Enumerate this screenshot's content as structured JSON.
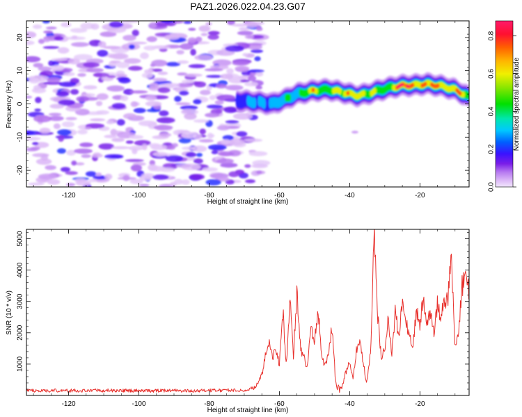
{
  "title": "PAZ1.2026.022.04.23.G07",
  "chart_data": [
    {
      "type": "heatmap",
      "name": "Radio-holographic spectrum",
      "xlabel": "Height of straight line (km)",
      "ylabel": "Frequency (Hz)",
      "xlim": [
        -132,
        -6
      ],
      "ylim": [
        -25,
        25
      ],
      "x_ticks": [
        "-120",
        "-100",
        "-80",
        "-60",
        "-40",
        "-20"
      ],
      "x_tick_values": [
        -120,
        -100,
        -80,
        -60,
        -40,
        -20
      ],
      "y_ticks": [
        "-20",
        "-10",
        "0",
        "10",
        "20"
      ],
      "y_tick_values": [
        -20,
        -10,
        0,
        10,
        20
      ],
      "colorbar": {
        "label": "Normalized spectral amplitude",
        "range": [
          0,
          0.88
        ],
        "ticks": [
          "0.0",
          "0.2",
          "0.4",
          "0.6",
          "0.8"
        ],
        "tick_values": [
          0.0,
          0.2,
          0.4,
          0.6,
          0.8
        ]
      },
      "noise_region_x": [
        -132,
        -67
      ],
      "signal_ridge": {
        "x": [
          -72,
          -66,
          -62,
          -58,
          -55,
          -50,
          -46,
          -42,
          -38,
          -35,
          -32,
          -28,
          -25,
          -22,
          -18,
          -14,
          -10,
          -6
        ],
        "frequency": [
          1.0,
          0.5,
          0.0,
          1.5,
          3.0,
          4.0,
          4.3,
          3.5,
          2.5,
          3.0,
          4.0,
          5.0,
          5.5,
          5.6,
          6.0,
          5.4,
          4.3,
          2.0
        ],
        "peak_amplitude": [
          0.25,
          0.3,
          0.35,
          0.4,
          0.45,
          0.65,
          0.6,
          0.62,
          0.8,
          0.5,
          0.55,
          0.62,
          0.88,
          0.85,
          0.7,
          0.8,
          0.75,
          0.5
        ]
      }
    },
    {
      "type": "line",
      "name": "SNR",
      "xlabel": "Height of straight line (km)",
      "ylabel": "SNR (10 * v/v)",
      "xlim": [
        -132,
        -6
      ],
      "ylim": [
        0,
        5300
      ],
      "color": "#e8302c",
      "x_ticks": [
        "-120",
        "-100",
        "-80",
        "-60",
        "-40",
        "-20"
      ],
      "x_tick_values": [
        -120,
        -100,
        -80,
        -60,
        -40,
        -20
      ],
      "y_ticks": [
        "1000",
        "2000",
        "3000",
        "4000",
        "5000"
      ],
      "y_tick_values": [
        1000,
        2000,
        3000,
        4000,
        5000
      ],
      "series": [
        {
          "name": "SNR",
          "x": [
            -132,
            -110,
            -90,
            -70,
            -67,
            -65,
            -64,
            -63,
            -62,
            -61,
            -60,
            -59,
            -58,
            -57,
            -56,
            -55,
            -54,
            -53,
            -52,
            -51,
            -50,
            -49,
            -48,
            -47,
            -46,
            -45,
            -44,
            -43,
            -42,
            -41,
            -40,
            -39,
            -38,
            -37,
            -36,
            -35,
            -34,
            -33,
            -32,
            -31,
            -30,
            -29,
            -28,
            -27,
            -26,
            -25,
            -24,
            -23,
            -22,
            -21,
            -20,
            -19,
            -18,
            -17,
            -16,
            -15,
            -14,
            -13,
            -12,
            -11,
            -10,
            -9,
            -8,
            -7,
            -6
          ],
          "y": [
            150,
            160,
            150,
            170,
            250,
            600,
            1300,
            1700,
            1200,
            1500,
            1000,
            2700,
            900,
            3000,
            1300,
            3300,
            1500,
            1200,
            900,
            2200,
            1700,
            2700,
            1400,
            900,
            1300,
            2200,
            400,
            200,
            300,
            800,
            1100,
            600,
            1500,
            1800,
            900,
            400,
            1500,
            5200,
            2500,
            1200,
            1500,
            2400,
            1400,
            2700,
            1800,
            2900,
            2400,
            2000,
            1600,
            2800,
            2300,
            3100,
            2300,
            2700,
            2100,
            2900,
            2500,
            3000,
            3100,
            4400,
            1600,
            2100,
            3500,
            3800,
            3300
          ]
        }
      ]
    }
  ]
}
